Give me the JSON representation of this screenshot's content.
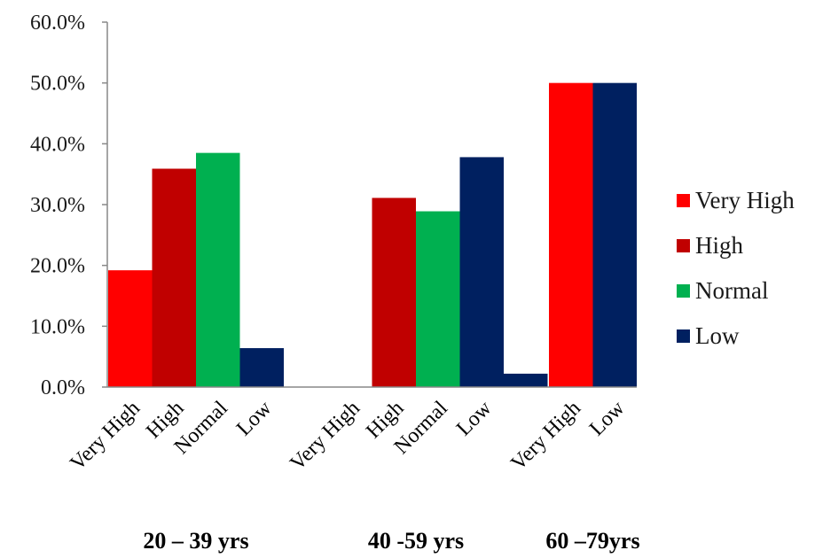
{
  "chart_data": {
    "type": "bar",
    "title": "",
    "xlabel": "",
    "ylabel": "",
    "ylim": [
      0,
      60
    ],
    "yticks": [
      "0.0%",
      "10.0%",
      "20.0%",
      "30.0%",
      "40.0%",
      "50.0%",
      "60.0%"
    ],
    "ytick_values": [
      0,
      10,
      20,
      30,
      40,
      50,
      60
    ],
    "grid": false,
    "legend_position": "right",
    "legend": [
      {
        "name": "Very High",
        "color": "#ff0000"
      },
      {
        "name": "High",
        "color": "#c00000"
      },
      {
        "name": "Normal",
        "color": "#00b050"
      },
      {
        "name": "Low",
        "color": "#002060"
      }
    ],
    "groups": [
      {
        "label": "20 – 39 yrs",
        "bars": [
          {
            "category": "Very High",
            "value": 19.2,
            "color": "#ff0000"
          },
          {
            "category": "High",
            "value": 35.9,
            "color": "#c00000"
          },
          {
            "category": "Normal",
            "value": 38.5,
            "color": "#00b050"
          },
          {
            "category": "Low",
            "value": 6.4,
            "color": "#002060"
          }
        ]
      },
      {
        "label": "40 -59 yrs",
        "bars": [
          {
            "category": "Very High",
            "value": 0,
            "color": "#ff0000"
          },
          {
            "category": "High",
            "value": 31.1,
            "color": "#c00000"
          },
          {
            "category": "Normal",
            "value": 28.9,
            "color": "#00b050"
          },
          {
            "category": "Low",
            "value": 37.8,
            "color": "#002060"
          },
          {
            "category": "Low",
            "value": 2.2,
            "color": "#002060"
          }
        ]
      },
      {
        "label": "60 –79yrs",
        "bars": [
          {
            "category": "Very High",
            "value": 50.0,
            "color": "#ff0000"
          },
          {
            "category": "Low",
            "value": 50.0,
            "color": "#002060"
          }
        ]
      }
    ],
    "axis_color": "#888888"
  }
}
